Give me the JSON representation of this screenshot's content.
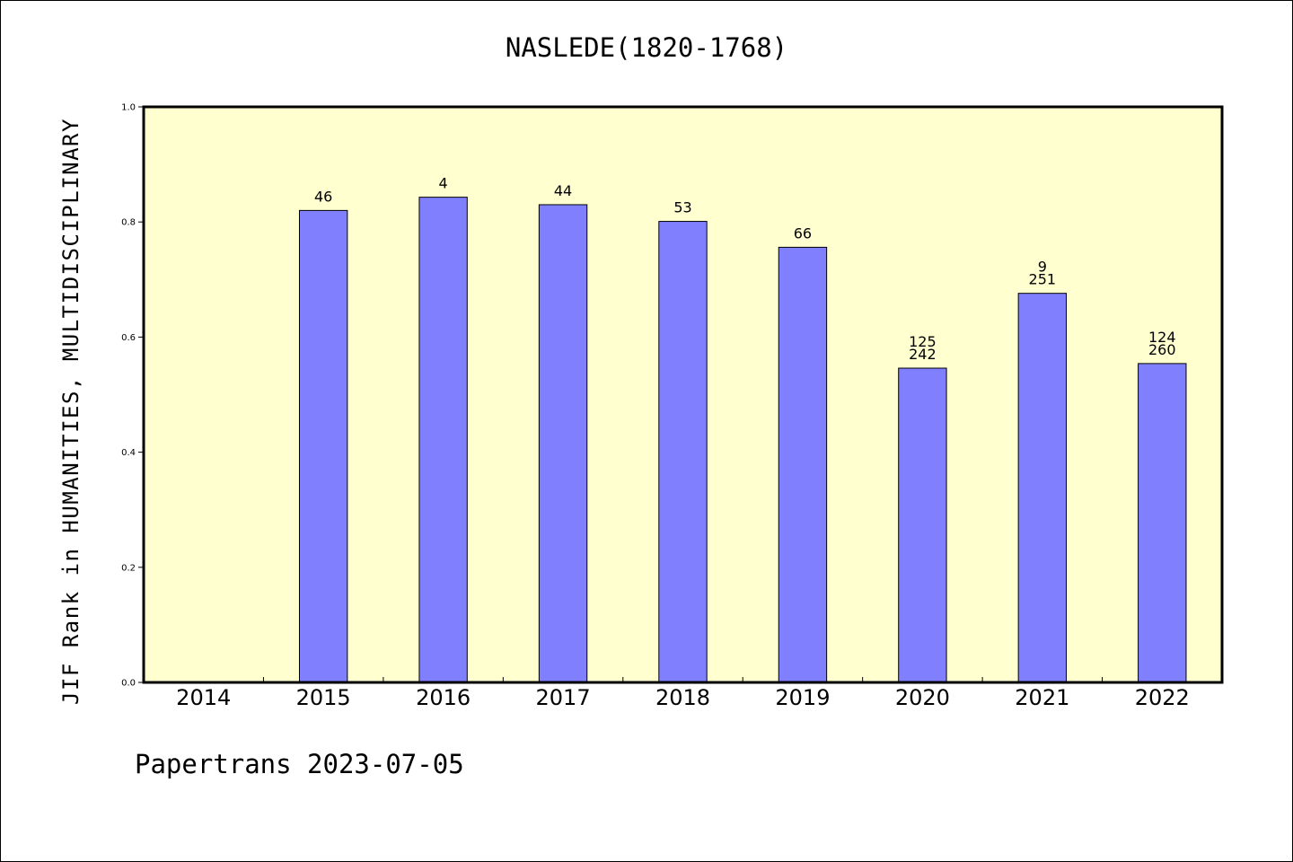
{
  "chart_data": {
    "type": "bar",
    "title": "NASLEDE(1820-1768)",
    "xlabel": "",
    "ylabel": "JIF Rank in HUMANITIES, MULTIDISCIPLINARY",
    "ylim": [
      0,
      1.0
    ],
    "yticks": [
      "0.0",
      "0.2",
      "0.4",
      "0.6",
      "0.8",
      "1.0"
    ],
    "categories": [
      "2014",
      "2015",
      "2016",
      "2017",
      "2018",
      "2019",
      "2020",
      "2021",
      "2022"
    ],
    "values": [
      null,
      0.82,
      0.843,
      0.83,
      0.801,
      0.756,
      0.546,
      0.676,
      0.554
    ],
    "labels": [
      [],
      [
        "46"
      ],
      [
        "4"
      ],
      [
        "44"
      ],
      [
        "53"
      ],
      [
        "66"
      ],
      [
        "125",
        "242"
      ],
      [
        "9",
        "251"
      ],
      [
        "124",
        "260"
      ]
    ],
    "bar_color": "#8080ff",
    "plot_background": "#ffffd0",
    "grid": false
  },
  "footer": "Papertrans 2023-07-05"
}
